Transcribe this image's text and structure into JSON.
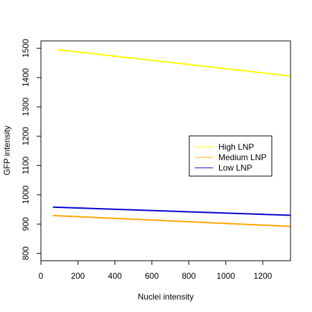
{
  "chart_data": {
    "type": "line",
    "xlabel": "Nuclei intensity",
    "ylabel": "GFP intensity",
    "xlim": [
      0,
      1350
    ],
    "ylim": [
      775,
      1525
    ],
    "x_ticks": [
      0,
      200,
      400,
      600,
      800,
      1000,
      1200
    ],
    "y_ticks": [
      800,
      900,
      1000,
      1100,
      1200,
      1300,
      1400,
      1500
    ],
    "grid": false,
    "legend_position": "right-center",
    "series": [
      {
        "name": "High LNP",
        "color": "#FFFF00",
        "x": [
          90,
          1350
        ],
        "y": [
          1495,
          1405
        ]
      },
      {
        "name": "Medium LNP",
        "color": "#FFA500",
        "x": [
          65,
          1350
        ],
        "y": [
          929,
          892
        ]
      },
      {
        "name": "Low LNP",
        "color": "#0000CD",
        "x": [
          65,
          1350
        ],
        "y": [
          958,
          930
        ]
      }
    ]
  }
}
